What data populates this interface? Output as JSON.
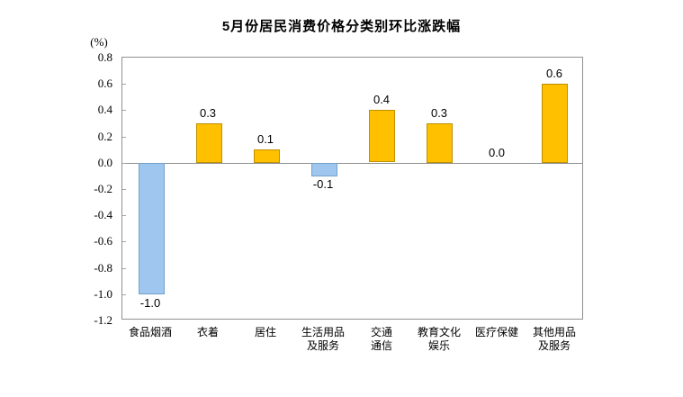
{
  "title": "5月份居民消费价格分类别环比涨跌幅",
  "chart_data": {
    "type": "bar",
    "title": "5月份居民消费价格分类别环比涨跌幅",
    "ylabel": "(%)",
    "ylim": [
      -1.2,
      0.8
    ],
    "ytick_step": 0.2,
    "grid": false,
    "legend_position": "none",
    "categories": [
      "食品烟酒",
      "衣着",
      "居住",
      "生活用品\n及服务",
      "交通\n通信",
      "教育文化\n娱乐",
      "医疗保健",
      "其他用品\n及服务"
    ],
    "values": [
      -1.0,
      0.3,
      0.1,
      -0.1,
      0.4,
      0.3,
      0.0,
      0.6
    ],
    "data_labels": [
      "-1.0",
      "0.3",
      "0.1",
      "-0.1",
      "0.4",
      "0.3",
      "0.0",
      "0.6"
    ],
    "colors": {
      "positive_fill": "#FFC000",
      "positive_border": "#BF8F00",
      "negative_fill": "#9FC6EE",
      "negative_border": "#74A2C8",
      "axis_line": "#909090",
      "tick_mark": "#A6A6A6",
      "text": "#000000"
    }
  }
}
